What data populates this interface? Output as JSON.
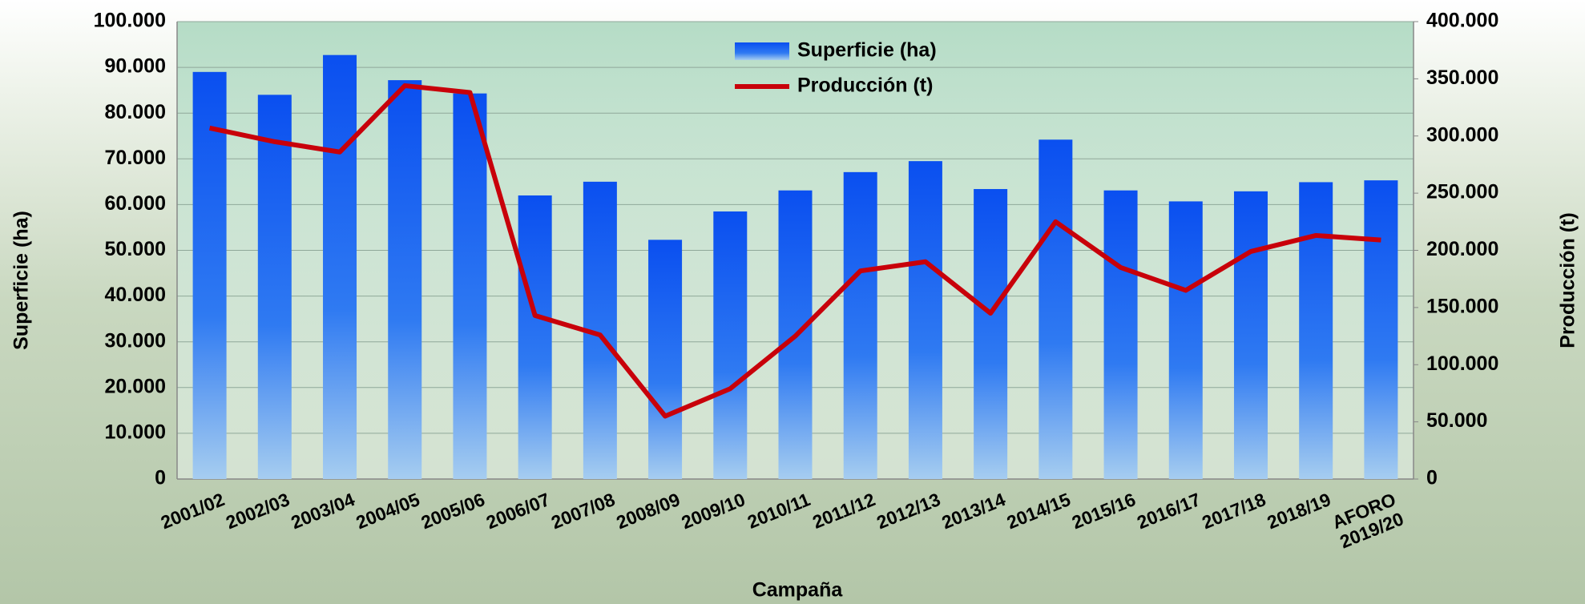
{
  "chart_data": {
    "type": "bar_line",
    "x_label": "Campaña",
    "y_label": "Superficie (ha)",
    "y2_label": "Producción (t)",
    "categories": [
      "2001/02",
      "2002/03",
      "2003/04",
      "2004/05",
      "2005/06",
      "2006/07",
      "2007/08",
      "2008/09",
      "2009/10",
      "2010/11",
      "2011/12",
      "2012/13",
      "2013/14",
      "2014/15",
      "2015/16",
      "2016/17",
      "2017/18",
      "2018/19",
      "AFORO\n2019/20"
    ],
    "series": [
      {
        "name": "Superficie (ha)",
        "type": "bar",
        "color": "#0a4ff0",
        "values": [
          89000,
          84000,
          92700,
          87200,
          84300,
          62000,
          65000,
          52300,
          58500,
          63100,
          67100,
          69500,
          63400,
          74200,
          63100,
          60700,
          62900,
          64900,
          65300
        ]
      },
      {
        "name": "Producción (t)",
        "type": "line",
        "axis": "y2",
        "color": "#c8000a",
        "values": [
          307000,
          295000,
          286000,
          344000,
          338000,
          143000,
          126000,
          55000,
          79000,
          125000,
          182000,
          190000,
          145000,
          225000,
          185000,
          165000,
          199000,
          213000,
          209000
        ]
      }
    ],
    "ylim": [
      0,
      100000
    ],
    "yticks": [
      0,
      {
        "value": 10000,
        "label": "10.000"
      },
      {
        "value": 20000,
        "label": "20.000"
      },
      {
        "value": 30000,
        "label": "30.000"
      },
      {
        "value": 40000,
        "label": "40.000"
      },
      {
        "value": 50000,
        "label": "50.000"
      },
      {
        "value": 60000,
        "label": "60.000"
      },
      {
        "value": 70000,
        "label": "70.000"
      },
      {
        "value": 80000,
        "label": "80.000"
      },
      {
        "value": 90000,
        "label": "90.000"
      },
      {
        "value": 100000,
        "label": "100.000"
      }
    ],
    "y2lim": [
      0,
      400000
    ],
    "y2ticks": [
      0,
      {
        "value": 50000,
        "label": "50.000"
      },
      {
        "value": 100000,
        "label": "100.000"
      },
      {
        "value": 150000,
        "label": "150.000"
      },
      {
        "value": 200000,
        "label": "200.000"
      },
      {
        "value": 250000,
        "label": "250.000"
      },
      {
        "value": 300000,
        "label": "300.000"
      },
      {
        "value": 350000,
        "label": "350.000"
      },
      {
        "value": 400000,
        "label": "400.000"
      }
    ],
    "grid": true
  }
}
